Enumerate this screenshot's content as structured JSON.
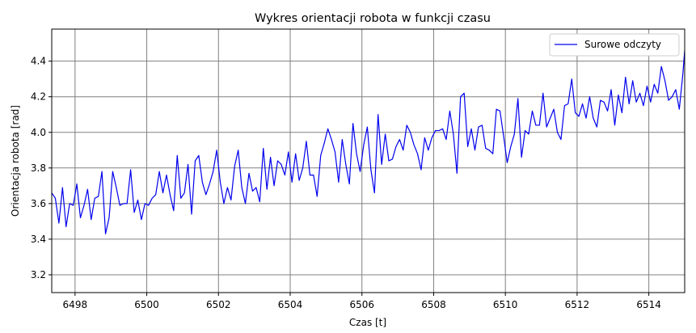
{
  "chart_data": {
    "type": "line",
    "title": "Wykres orientacji robota w funkcji czasu",
    "xlabel": "Czas [t]",
    "ylabel": "Orientacja robota [rad]",
    "xlim": [
      6497.35,
      6515.0
    ],
    "ylim": [
      3.1,
      4.58
    ],
    "xticks": [
      6498,
      6500,
      6502,
      6504,
      6506,
      6508,
      6510,
      6512,
      6514
    ],
    "yticks": [
      3.2,
      3.4,
      3.6,
      3.8,
      4.0,
      4.2,
      4.4
    ],
    "grid": true,
    "legend_position": "top-right",
    "series": [
      {
        "name": "Surowe odczyty",
        "color": "#0000ee",
        "x": [
          6497.35,
          6497.45,
          6497.55,
          6497.65,
          6497.75,
          6497.85,
          6497.95,
          6498.05,
          6498.15,
          6498.25,
          6498.35,
          6498.45,
          6498.55,
          6498.65,
          6498.75,
          6498.85,
          6498.95,
          6499.05,
          6499.15,
          6499.25,
          6499.35,
          6499.45,
          6499.55,
          6499.65,
          6499.75,
          6499.85,
          6499.95,
          6500.05,
          6500.15,
          6500.25,
          6500.35,
          6500.45,
          6500.55,
          6500.65,
          6500.75,
          6500.85,
          6500.95,
          6501.05,
          6501.15,
          6501.25,
          6501.35,
          6501.45,
          6501.55,
          6501.65,
          6501.75,
          6501.85,
          6501.95,
          6502.05,
          6502.15,
          6502.25,
          6502.35,
          6502.45,
          6502.55,
          6502.65,
          6502.75,
          6502.85,
          6502.95,
          6503.05,
          6503.15,
          6503.25,
          6503.35,
          6503.45,
          6503.55,
          6503.65,
          6503.75,
          6503.85,
          6503.95,
          6504.05,
          6504.15,
          6504.25,
          6504.35,
          6504.45,
          6504.55,
          6504.65,
          6504.75,
          6504.85,
          6504.95,
          6505.05,
          6505.15,
          6505.25,
          6505.35,
          6505.45,
          6505.55,
          6505.65,
          6505.75,
          6505.85,
          6505.95,
          6506.05,
          6506.15,
          6506.25,
          6506.35,
          6506.45,
          6506.55,
          6506.65,
          6506.75,
          6506.85,
          6506.95,
          6507.05,
          6507.15,
          6507.25,
          6507.35,
          6507.45,
          6507.55,
          6507.65,
          6507.75,
          6507.85,
          6507.95,
          6508.05,
          6508.15,
          6508.25,
          6508.35,
          6508.45,
          6508.55,
          6508.65,
          6508.75,
          6508.85,
          6508.95,
          6509.05,
          6509.15,
          6509.25,
          6509.35,
          6509.45,
          6509.55,
          6509.65,
          6509.75,
          6509.85,
          6509.95,
          6510.05,
          6510.15,
          6510.25,
          6510.35,
          6510.45,
          6510.55,
          6510.65,
          6510.75,
          6510.85,
          6510.95,
          6511.05,
          6511.15,
          6511.25,
          6511.35,
          6511.45,
          6511.55,
          6511.65,
          6511.75,
          6511.85,
          6511.95,
          6512.05,
          6512.15,
          6512.25,
          6512.35,
          6512.45,
          6512.55,
          6512.65,
          6512.75,
          6512.85,
          6512.95,
          6513.05,
          6513.15,
          6513.25,
          6513.35,
          6513.45,
          6513.55,
          6513.65,
          6513.75,
          6513.85,
          6513.95,
          6514.05,
          6514.15,
          6514.25,
          6514.35,
          6514.45,
          6514.55,
          6514.65,
          6514.75,
          6514.85,
          6514.95,
          6515.0
        ],
        "y": [
          3.66,
          3.63,
          3.49,
          3.69,
          3.47,
          3.6,
          3.59,
          3.71,
          3.52,
          3.59,
          3.68,
          3.51,
          3.63,
          3.64,
          3.78,
          3.43,
          3.52,
          3.78,
          3.69,
          3.59,
          3.6,
          3.6,
          3.79,
          3.55,
          3.62,
          3.51,
          3.6,
          3.59,
          3.63,
          3.65,
          3.78,
          3.66,
          3.76,
          3.65,
          3.56,
          3.87,
          3.63,
          3.66,
          3.82,
          3.54,
          3.84,
          3.87,
          3.72,
          3.65,
          3.71,
          3.78,
          3.9,
          3.72,
          3.6,
          3.69,
          3.62,
          3.81,
          3.9,
          3.69,
          3.6,
          3.77,
          3.67,
          3.69,
          3.61,
          3.91,
          3.68,
          3.86,
          3.7,
          3.84,
          3.82,
          3.76,
          3.89,
          3.72,
          3.88,
          3.73,
          3.8,
          3.95,
          3.76,
          3.76,
          3.64,
          3.87,
          3.94,
          4.02,
          3.96,
          3.89,
          3.72,
          3.96,
          3.82,
          3.71,
          4.05,
          3.88,
          3.78,
          3.93,
          4.03,
          3.79,
          3.66,
          4.1,
          3.82,
          3.99,
          3.84,
          3.85,
          3.92,
          3.96,
          3.9,
          4.04,
          4.0,
          3.93,
          3.88,
          3.79,
          3.97,
          3.9,
          3.97,
          4.01,
          4.01,
          4.02,
          3.96,
          4.12,
          3.99,
          3.77,
          4.2,
          4.22,
          3.92,
          4.02,
          3.9,
          4.03,
          4.04,
          3.91,
          3.9,
          3.88,
          4.13,
          4.12,
          3.98,
          3.83,
          3.92,
          3.99,
          4.19,
          3.86,
          4.01,
          3.99,
          4.12,
          4.04,
          4.04,
          4.22,
          4.03,
          4.08,
          4.13,
          4.0,
          3.96,
          4.15,
          4.16,
          4.3,
          4.11,
          4.09,
          4.16,
          4.08,
          4.2,
          4.08,
          4.03,
          4.18,
          4.17,
          4.12,
          4.24,
          4.04,
          4.21,
          4.11,
          4.31,
          4.16,
          4.29,
          4.17,
          4.22,
          4.15,
          4.26,
          4.17,
          4.27,
          4.22,
          4.37,
          4.29,
          4.18,
          4.2,
          4.24,
          4.13,
          4.33,
          4.46
        ]
      }
    ]
  }
}
